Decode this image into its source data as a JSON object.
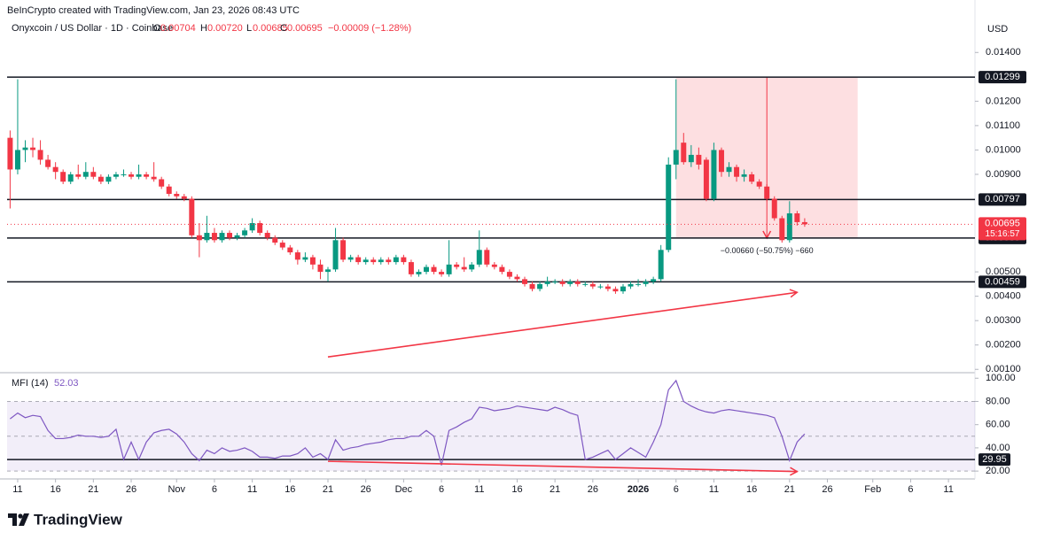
{
  "header": {
    "attribution": "BeInCrypto created with TradingView.com, Jan 23, 2026 08:43 UTC",
    "symbol": "Onyxcoin / US Dollar · 1D · Coinbase",
    "ohlc_letters": [
      "O",
      "H",
      "L",
      "C"
    ],
    "change": "−0.00009 (−1.28%)"
  },
  "footer": {
    "brand": "TradingView"
  },
  "chart_data": [
    {
      "type": "candlestick",
      "currency": "USD",
      "up_color": "#089981",
      "down_color": "#f23645",
      "x": [
        -1,
        0,
        1,
        2,
        3,
        4,
        5,
        6,
        7,
        8,
        9,
        10,
        11,
        12,
        13,
        14,
        15,
        16,
        17,
        18,
        19,
        20,
        21,
        22,
        23,
        24,
        25,
        26,
        27,
        28,
        29,
        30,
        31,
        32,
        33,
        34,
        35,
        36,
        37,
        38,
        39,
        40,
        41,
        42,
        43,
        44,
        45,
        46,
        47,
        48,
        49,
        50,
        51,
        52,
        53,
        54,
        55,
        56,
        57,
        58,
        59,
        60,
        61,
        62,
        63,
        64,
        65,
        66,
        67,
        68,
        69,
        70,
        71,
        72,
        73,
        74,
        75,
        76,
        77,
        78,
        79,
        80,
        81,
        82,
        83,
        84,
        85,
        86,
        87,
        88,
        89,
        90,
        91,
        92,
        93,
        94,
        95,
        96,
        97,
        98,
        99,
        100,
        101,
        102,
        103,
        104
      ],
      "candles": [
        [
          0.0105,
          0.0108,
          0.0076,
          0.0092
        ],
        [
          0.0092,
          0.0129,
          0.009,
          0.01
        ],
        [
          0.01,
          0.0104,
          0.0095,
          0.0101
        ],
        [
          0.0101,
          0.0105,
          0.0097,
          0.01
        ],
        [
          0.01,
          0.0104,
          0.0094,
          0.0096
        ],
        [
          0.0096,
          0.0098,
          0.0092,
          0.0093
        ],
        [
          0.0093,
          0.0095,
          0.0088,
          0.0091
        ],
        [
          0.0091,
          0.0092,
          0.0086,
          0.0087
        ],
        [
          0.0087,
          0.0091,
          0.0086,
          0.009
        ],
        [
          0.009,
          0.0094,
          0.0088,
          0.0089
        ],
        [
          0.0089,
          0.0095,
          0.0088,
          0.0091
        ],
        [
          0.0091,
          0.0093,
          0.0088,
          0.0089
        ],
        [
          0.0089,
          0.009,
          0.0086,
          0.0087
        ],
        [
          0.0087,
          0.009,
          0.0086,
          0.0089
        ],
        [
          0.0089,
          0.0091,
          0.0088,
          0.009
        ],
        [
          0.009,
          0.0092,
          0.0089,
          0.009
        ],
        [
          0.009,
          0.0091,
          0.0088,
          0.0089
        ],
        [
          0.0089,
          0.0094,
          0.0088,
          0.009
        ],
        [
          0.009,
          0.0091,
          0.0088,
          0.0089
        ],
        [
          0.0089,
          0.0095,
          0.0087,
          0.0088
        ],
        [
          0.0088,
          0.0089,
          0.0084,
          0.0085
        ],
        [
          0.0085,
          0.0086,
          0.0081,
          0.0082
        ],
        [
          0.0082,
          0.0083,
          0.008,
          0.0081
        ],
        [
          0.0081,
          0.0082,
          0.0079,
          0.008
        ],
        [
          0.008,
          0.0081,
          0.0064,
          0.0065
        ],
        [
          0.0065,
          0.007,
          0.0056,
          0.0063
        ],
        [
          0.0063,
          0.0073,
          0.0062,
          0.0066
        ],
        [
          0.0066,
          0.0068,
          0.0062,
          0.0063
        ],
        [
          0.0063,
          0.0067,
          0.0062,
          0.0066
        ],
        [
          0.0066,
          0.0067,
          0.0063,
          0.0064
        ],
        [
          0.0064,
          0.0066,
          0.0063,
          0.0065
        ],
        [
          0.0065,
          0.0068,
          0.0064,
          0.0067
        ],
        [
          0.0067,
          0.0072,
          0.0066,
          0.007
        ],
        [
          0.007,
          0.0071,
          0.0065,
          0.0066
        ],
        [
          0.0066,
          0.0067,
          0.0063,
          0.0064
        ],
        [
          0.0064,
          0.0065,
          0.0061,
          0.0062
        ],
        [
          0.0062,
          0.0063,
          0.0059,
          0.006
        ],
        [
          0.006,
          0.0061,
          0.0057,
          0.0058
        ],
        [
          0.0058,
          0.0059,
          0.0053,
          0.0055
        ],
        [
          0.0055,
          0.0058,
          0.0054,
          0.0056
        ],
        [
          0.0056,
          0.0057,
          0.0051,
          0.0053
        ],
        [
          0.0053,
          0.0055,
          0.0047,
          0.005
        ],
        [
          0.005,
          0.0052,
          0.0046,
          0.0051
        ],
        [
          0.0051,
          0.0068,
          0.005,
          0.0063
        ],
        [
          0.0063,
          0.0064,
          0.0054,
          0.0055
        ],
        [
          0.0055,
          0.0057,
          0.0054,
          0.0056
        ],
        [
          0.0056,
          0.0057,
          0.0053,
          0.0054
        ],
        [
          0.0054,
          0.0056,
          0.0053,
          0.0055
        ],
        [
          0.0055,
          0.0056,
          0.0053,
          0.0054
        ],
        [
          0.0054,
          0.0056,
          0.0053,
          0.0055
        ],
        [
          0.0055,
          0.0056,
          0.0053,
          0.0054
        ],
        [
          0.0054,
          0.0057,
          0.0053,
          0.0056
        ],
        [
          0.0056,
          0.0057,
          0.0053,
          0.0054
        ],
        [
          0.0054,
          0.0055,
          0.0048,
          0.0049
        ],
        [
          0.0049,
          0.0051,
          0.0048,
          0.005
        ],
        [
          0.005,
          0.0053,
          0.0049,
          0.0052
        ],
        [
          0.0052,
          0.0053,
          0.0049,
          0.005
        ],
        [
          0.005,
          0.0051,
          0.0048,
          0.0049
        ],
        [
          0.0049,
          0.0063,
          0.0048,
          0.0053
        ],
        [
          0.0053,
          0.0054,
          0.0051,
          0.0052
        ],
        [
          0.0052,
          0.0056,
          0.005,
          0.0051
        ],
        [
          0.0051,
          0.0054,
          0.005,
          0.0053
        ],
        [
          0.0053,
          0.0067,
          0.0052,
          0.0059
        ],
        [
          0.0059,
          0.006,
          0.0052,
          0.0053
        ],
        [
          0.0053,
          0.0054,
          0.0051,
          0.0052
        ],
        [
          0.0052,
          0.0053,
          0.0049,
          0.005
        ],
        [
          0.005,
          0.0051,
          0.0047,
          0.0048
        ],
        [
          0.0048,
          0.0049,
          0.0046,
          0.0047
        ],
        [
          0.0047,
          0.0048,
          0.0044,
          0.0045
        ],
        [
          0.0045,
          0.0046,
          0.0042,
          0.0043
        ],
        [
          0.0043,
          0.0046,
          0.0042,
          0.0045
        ],
        [
          0.0045,
          0.0048,
          0.0044,
          0.0046
        ],
        [
          0.0046,
          0.0047,
          0.0045,
          0.0046
        ],
        [
          0.0046,
          0.0047,
          0.0044,
          0.0045
        ],
        [
          0.0045,
          0.0047,
          0.0044,
          0.0046
        ],
        [
          0.0046,
          0.0047,
          0.0044,
          0.0045
        ],
        [
          0.0045,
          0.0046,
          0.0044,
          0.0045
        ],
        [
          0.0045,
          0.0046,
          0.0043,
          0.0044
        ],
        [
          0.0044,
          0.0045,
          0.0043,
          0.0044
        ],
        [
          0.0044,
          0.0045,
          0.0042,
          0.0043
        ],
        [
          0.0043,
          0.0044,
          0.0041,
          0.0042
        ],
        [
          0.0042,
          0.0045,
          0.0041,
          0.0044
        ],
        [
          0.0044,
          0.0046,
          0.0043,
          0.0045
        ],
        [
          0.0045,
          0.0047,
          0.0044,
          0.0045
        ],
        [
          0.0045,
          0.0047,
          0.0044,
          0.0046
        ],
        [
          0.0046,
          0.0048,
          0.0045,
          0.0047
        ],
        [
          0.0047,
          0.0061,
          0.0046,
          0.0059
        ],
        [
          0.0059,
          0.0097,
          0.0058,
          0.0094
        ],
        [
          0.0094,
          0.0129,
          0.0088,
          0.01
        ],
        [
          0.0103,
          0.0107,
          0.0094,
          0.0095
        ],
        [
          0.0095,
          0.0102,
          0.0093,
          0.0098
        ],
        [
          0.0098,
          0.0101,
          0.0092,
          0.0094
        ],
        [
          0.0096,
          0.0097,
          0.0079,
          0.008
        ],
        [
          0.008,
          0.0103,
          0.0079,
          0.01
        ],
        [
          0.01,
          0.0101,
          0.0089,
          0.0091
        ],
        [
          0.0091,
          0.0095,
          0.0089,
          0.0093
        ],
        [
          0.0093,
          0.0094,
          0.0087,
          0.0089
        ],
        [
          0.0089,
          0.0092,
          0.0087,
          0.009
        ],
        [
          0.009,
          0.0091,
          0.0086,
          0.0087
        ],
        [
          0.0087,
          0.0088,
          0.0084,
          0.0085
        ],
        [
          0.0085,
          0.0086,
          0.0079,
          0.008
        ],
        [
          0.008,
          0.0081,
          0.0071,
          0.0072
        ],
        [
          0.0072,
          0.0073,
          0.0062,
          0.0063
        ],
        [
          0.0063,
          0.0079,
          0.0062,
          0.0074
        ],
        [
          0.0074,
          0.0075,
          0.0069,
          0.00704
        ],
        [
          0.00704,
          0.0072,
          0.00685,
          0.00695
        ]
      ],
      "last_value_labels": [
        "0.00704",
        "0.00720",
        "0.00685",
        "0.00695"
      ],
      "countdown": "15:16:57",
      "xlim": [
        -1.4,
        126.5
      ],
      "xticks": [
        {
          "value": 0,
          "label": "11"
        },
        {
          "value": 5,
          "label": "16"
        },
        {
          "value": 10,
          "label": "21"
        },
        {
          "value": 15,
          "label": "26"
        },
        {
          "value": 21,
          "label": "Nov"
        },
        {
          "value": 26,
          "label": "6"
        },
        {
          "value": 31,
          "label": "11"
        },
        {
          "value": 36,
          "label": "16"
        },
        {
          "value": 41,
          "label": "21"
        },
        {
          "value": 46,
          "label": "26"
        },
        {
          "value": 51,
          "label": "Dec"
        },
        {
          "value": 56,
          "label": "6"
        },
        {
          "value": 61,
          "label": "11"
        },
        {
          "value": 66,
          "label": "16"
        },
        {
          "value": 71,
          "label": "21"
        },
        {
          "value": 76,
          "label": "26"
        },
        {
          "value": 82,
          "label": "2026"
        },
        {
          "value": 87,
          "label": "6"
        },
        {
          "value": 92,
          "label": "11"
        },
        {
          "value": 97,
          "label": "16"
        },
        {
          "value": 102,
          "label": "21"
        },
        {
          "value": 107,
          "label": "26"
        },
        {
          "value": 113,
          "label": "Feb"
        },
        {
          "value": 118,
          "label": "6"
        },
        {
          "value": 123,
          "label": "11"
        }
      ],
      "ylim": [
        0.0009,
        0.0147
      ],
      "yticks": [
        {
          "value": 0.014,
          "label": "0.01400"
        },
        {
          "value": 0.012,
          "label": "0.01200"
        },
        {
          "value": 0.011,
          "label": "0.01100"
        },
        {
          "value": 0.01,
          "label": "0.01000"
        },
        {
          "value": 0.009,
          "label": "0.00900"
        },
        {
          "value": 0.005,
          "label": "0.00500"
        },
        {
          "value": 0.004,
          "label": "0.00400"
        },
        {
          "value": 0.003,
          "label": "0.00300"
        },
        {
          "value": 0.002,
          "label": "0.00200"
        },
        {
          "value": 0.001,
          "label": "0.00100"
        }
      ],
      "levels": [
        0.01299,
        0.00797,
        0.00639,
        0.00459
      ],
      "measure": {
        "x": [
          87,
          111
        ],
        "from": 0.01299,
        "to": 0.00639,
        "arrow_x": 99,
        "label": "−0.00660 (−50.75%) −660",
        "color": "#f23645"
      },
      "trend_line": {
        "x": [
          41,
          103
        ],
        "y": [
          0.00151,
          0.00416
        ],
        "color": "#f23645"
      }
    },
    {
      "type": "line",
      "title": "MFI (14)",
      "color": "#7e57c2",
      "values": [
        65,
        70,
        66,
        68,
        67,
        55,
        48,
        48,
        49,
        51,
        50,
        50,
        49,
        50,
        56,
        30,
        45,
        30,
        45,
        53,
        55,
        56,
        52,
        45,
        35,
        29,
        38,
        35,
        40,
        37,
        38,
        40,
        37,
        32,
        32,
        31,
        33,
        33,
        35,
        40,
        32,
        35,
        30,
        47,
        38,
        40,
        41,
        43,
        44,
        45,
        47,
        48,
        48,
        50,
        50,
        55,
        50,
        25,
        55,
        58,
        62,
        65,
        75,
        74,
        72,
        73,
        74,
        76,
        75,
        74,
        73,
        72,
        75,
        73,
        70,
        68,
        30,
        32,
        35,
        38,
        30,
        35,
        40,
        36,
        32,
        45,
        60,
        90,
        98,
        80,
        76,
        73,
        71,
        70,
        72,
        73,
        72,
        71,
        70,
        69,
        68,
        66,
        50,
        29,
        45,
        52.03
      ],
      "ylim": [
        14,
        104
      ],
      "yticks": [
        {
          "value": 100,
          "label": "100.00"
        },
        {
          "value": 80,
          "label": "80.00"
        },
        {
          "value": 60,
          "label": "60.00"
        },
        {
          "value": 40,
          "label": "40.00"
        },
        {
          "value": 20,
          "label": "20.00"
        }
      ],
      "band": [
        20,
        80
      ],
      "midline": 50,
      "level": 29.95,
      "trend_line": {
        "x": [
          41,
          103
        ],
        "y": [
          28.4,
          19.6
        ],
        "color": "#f23645"
      }
    }
  ]
}
